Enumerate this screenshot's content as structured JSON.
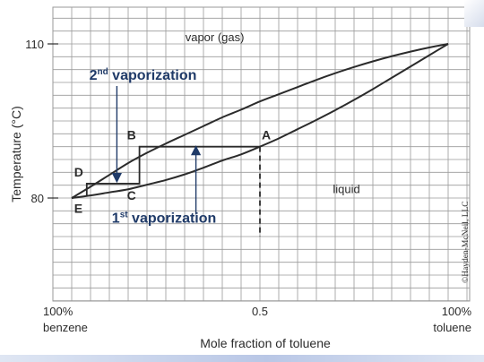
{
  "chart_data": {
    "type": "line",
    "title": "",
    "xlabel": "Mole fraction of toluene",
    "ylabel": "Temperature (°C)",
    "xlim": [
      0,
      1
    ],
    "ylim": [
      80,
      110
    ],
    "grid": true,
    "x_ticks": [
      {
        "x": 0,
        "line1": "100%",
        "line2": "benzene"
      },
      {
        "x": 0.5,
        "line1": "0.5",
        "line2": ""
      },
      {
        "x": 1,
        "line1": "100%",
        "line2": "toluene"
      }
    ],
    "y_ticks": [
      {
        "y": 80,
        "label": "80"
      },
      {
        "y": 110,
        "label": "110"
      }
    ],
    "series": [
      {
        "id": "vapor-curve",
        "x": [
          0,
          0.05,
          0.1,
          0.15,
          0.2,
          0.25,
          0.3,
          0.35,
          0.4,
          0.45,
          0.5,
          0.55,
          0.6,
          0.65,
          0.7,
          0.75,
          0.8,
          0.85,
          0.9,
          0.95,
          1
        ],
        "y": [
          80.0,
          82.2,
          84.5,
          86.8,
          88.8,
          90.6,
          92.3,
          94.0,
          95.7,
          97.2,
          98.8,
          100.2,
          101.6,
          103.0,
          104.3,
          105.5,
          106.6,
          107.6,
          108.5,
          109.3,
          110.0
        ]
      },
      {
        "id": "liquid-curve",
        "x": [
          0,
          0.05,
          0.1,
          0.15,
          0.2,
          0.25,
          0.3,
          0.35,
          0.4,
          0.45,
          0.5,
          0.55,
          0.6,
          0.65,
          0.7,
          0.75,
          0.8,
          0.85,
          0.9,
          0.95,
          1
        ],
        "y": [
          80.0,
          80.5,
          81.1,
          81.7,
          82.6,
          83.5,
          84.6,
          85.9,
          87.3,
          88.5,
          90.0,
          91.6,
          93.4,
          95.2,
          97.1,
          99.1,
          101.2,
          103.4,
          105.6,
          107.8,
          110.0
        ]
      }
    ],
    "vaporization_steps": {
      "solid_path": [
        [
          0.5,
          90.0
        ],
        [
          0.18,
          90.0
        ],
        [
          0.18,
          82.8
        ],
        [
          0.04,
          82.8
        ],
        [
          0.04,
          80.3
        ]
      ],
      "dashed_drop": [
        [
          0.5,
          90.0
        ],
        [
          0.5,
          72.5
        ]
      ]
    },
    "point_labels": [
      {
        "id": "A",
        "text": "A",
        "x": 0.5,
        "y": 90.0,
        "anchor": "top-right"
      },
      {
        "id": "B",
        "text": "B",
        "x": 0.18,
        "y": 90.0,
        "anchor": "top-left"
      },
      {
        "id": "C",
        "text": "C",
        "x": 0.18,
        "y": 82.8,
        "anchor": "bottom-left"
      },
      {
        "id": "D",
        "text": "D",
        "x": 0.04,
        "y": 82.8,
        "anchor": "top-left"
      },
      {
        "id": "E",
        "text": "E",
        "x": 0.04,
        "y": 80.3,
        "anchor": "bottom-left"
      }
    ],
    "region_labels": [
      {
        "id": "vapor",
        "text": "vapor (gas)",
        "x": 0.38,
        "y": 110.5
      },
      {
        "id": "liquid",
        "text": "liquid",
        "x": 0.73,
        "y": 81.0
      }
    ],
    "annotations": [
      {
        "id": "second-vaporization",
        "base": "2",
        "sup": "nd",
        "rest": " vaporization",
        "x": 0.03,
        "y": 103.0,
        "color": "#1f3a68"
      },
      {
        "id": "first-vaporization",
        "base": "1",
        "sup": "st",
        "rest": " vaporization",
        "x": 0.09,
        "y": 75.2,
        "color": "#1f3a68"
      }
    ],
    "arrows": [
      {
        "id": "second-vaporization-arrow",
        "x": 0.12,
        "y_from": 101.8,
        "y_to": 83.9,
        "color": "#1f3a68"
      },
      {
        "id": "first-vaporization-arrow",
        "x": 0.33,
        "y_from": 76.8,
        "y_to": 89.3,
        "color": "#1f3a68"
      }
    ],
    "colors": {
      "curves": "#2b2b2b",
      "grid": "#9a9a9a",
      "annotation": "#1f3a68",
      "text": "#2b2b2b"
    }
  },
  "credit": "©Hayden-McNeil, LLC"
}
